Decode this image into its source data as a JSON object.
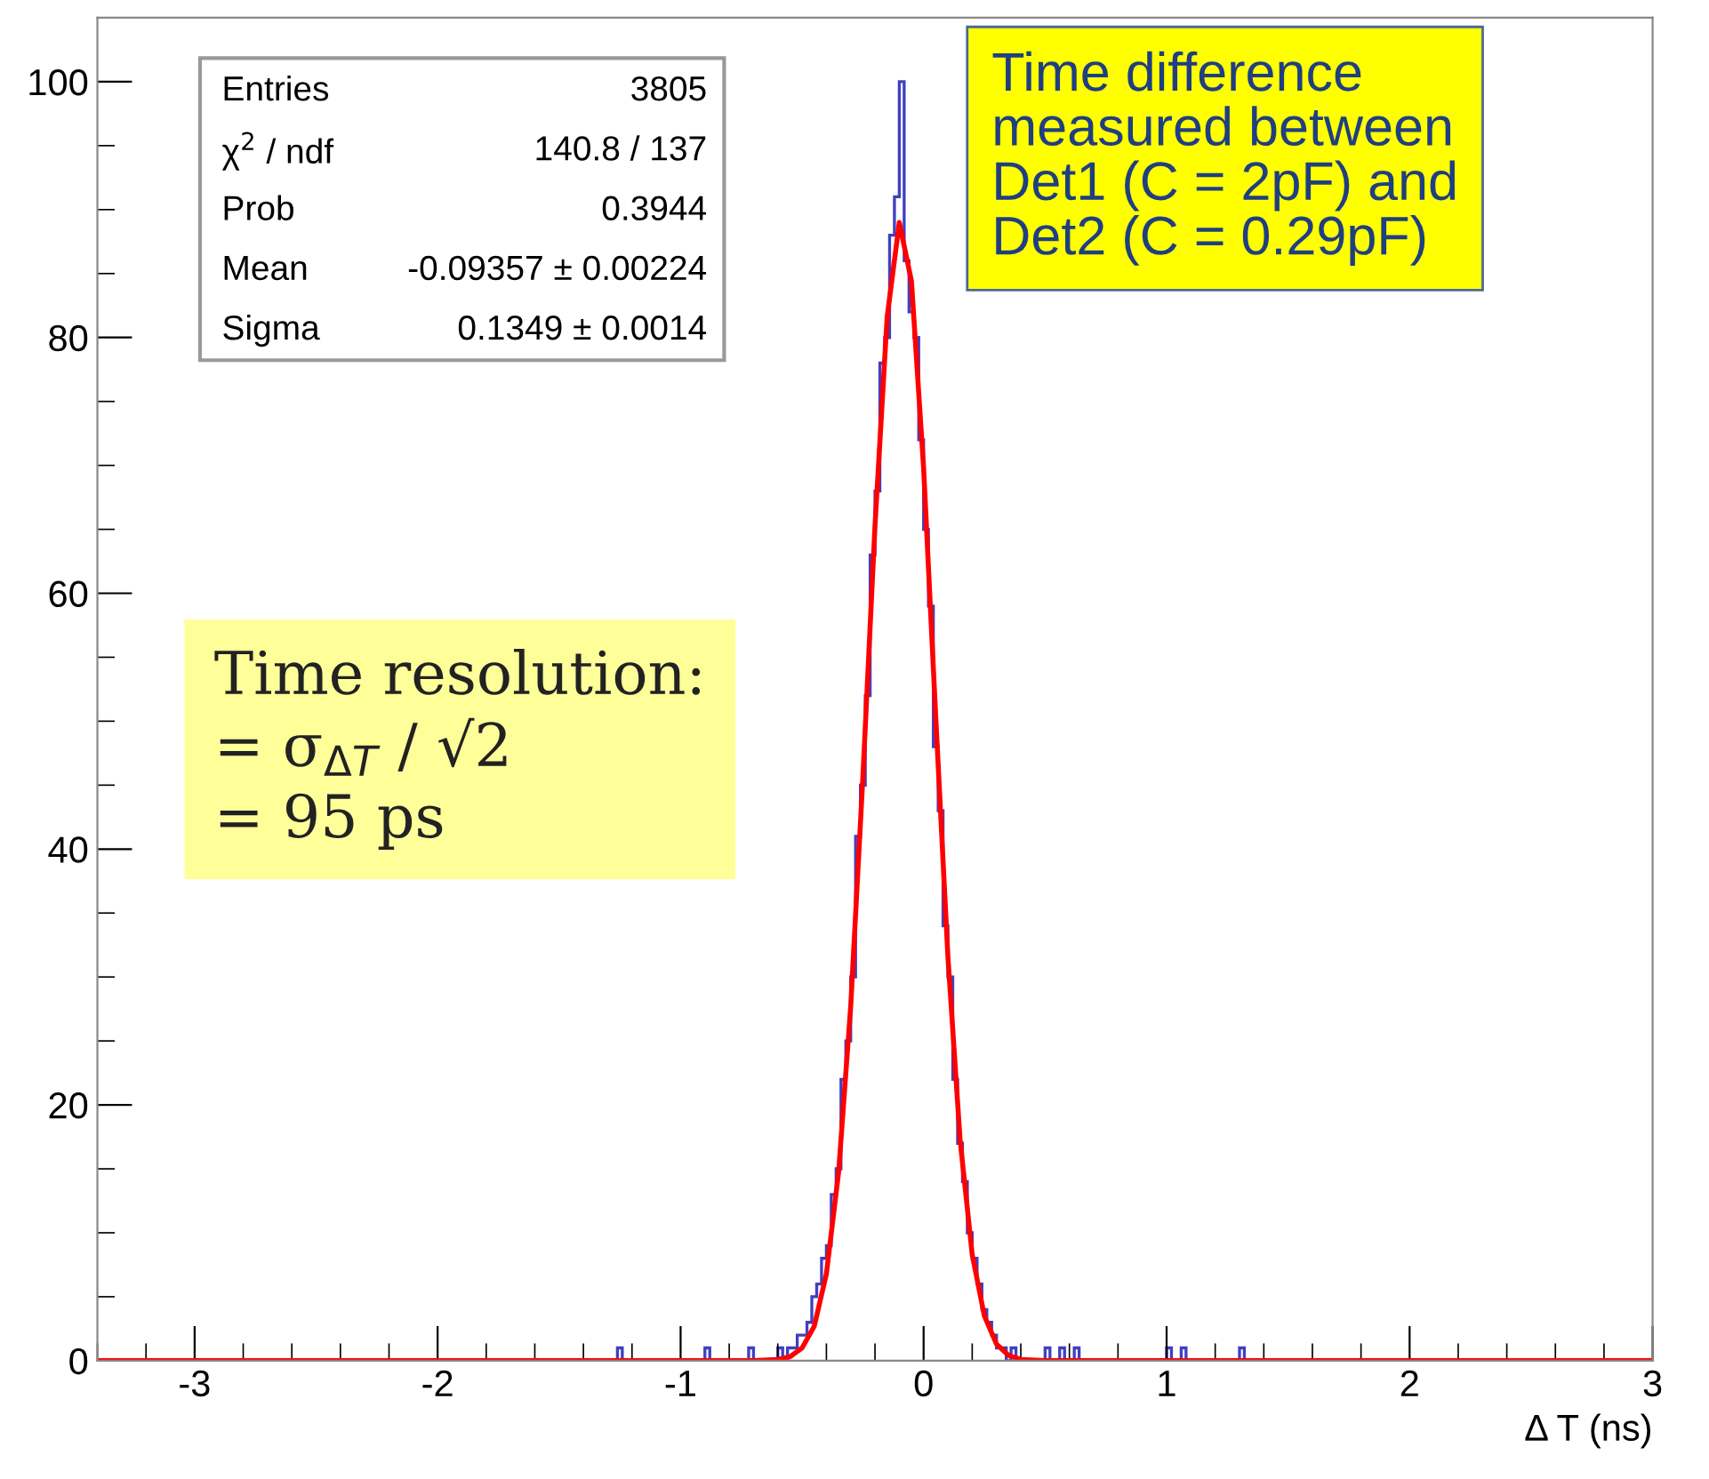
{
  "chart_data": {
    "type": "histogram",
    "xlabel": "Δ T (ns)",
    "bins": [
      -1.3,
      -1.28,
      -1.26,
      -1.24,
      -1.22,
      -1.2,
      -1.18,
      -1.16,
      -1.14,
      -1.12,
      -1.1,
      -1.08,
      -1.06,
      -1.04,
      -1.02,
      -1,
      -0.98,
      -0.96,
      -0.94,
      -0.92,
      -0.9,
      -0.88,
      -0.86,
      -0.84,
      -0.82,
      -0.8,
      -0.78,
      -0.76,
      -0.74,
      -0.72,
      -0.7,
      -0.68,
      -0.66,
      -0.64,
      -0.62,
      -0.6,
      -0.58,
      -0.56,
      -0.54,
      -0.52,
      -0.5,
      -0.48,
      -0.46,
      -0.44,
      -0.42,
      -0.4,
      -0.38,
      -0.36,
      -0.34,
      -0.32,
      -0.3,
      -0.28,
      -0.26,
      -0.24,
      -0.22,
      -0.2,
      -0.18,
      -0.16,
      -0.14,
      -0.12,
      -0.1,
      -0.08,
      -0.06,
      -0.04,
      -0.02,
      0,
      0.02,
      0.04,
      0.06,
      0.08,
      0.1,
      0.12,
      0.14,
      0.16,
      0.18,
      0.2,
      0.22,
      0.24,
      0.26,
      0.28,
      0.3,
      0.32,
      0.34,
      0.36,
      0.38,
      0.4,
      0.42,
      0.44,
      0.46,
      0.48,
      0.5,
      0.52,
      0.54,
      0.56,
      0.58,
      0.6,
      0.62,
      0.64,
      0.66,
      0.68,
      0.7,
      0.72,
      0.74,
      0.76,
      0.78,
      0.8,
      0.82,
      0.84,
      0.86,
      0.88,
      0.9,
      0.92,
      0.94,
      0.96,
      0.98,
      1,
      1.02,
      1.04,
      1.06,
      1.08,
      1.1,
      1.12,
      1.14,
      1.16,
      1.18,
      1.2,
      1.22,
      1.24,
      1.26,
      1.28,
      1.3,
      1.32,
      1.34
    ],
    "series": [
      {
        "color": "#4040c0",
        "values": [
          0,
          0,
          1,
          0,
          0,
          0,
          0,
          0,
          0,
          0,
          0,
          0,
          0,
          0,
          0,
          0,
          0,
          0,
          0,
          0,
          1,
          0,
          0,
          0,
          0,
          0,
          0,
          0,
          0,
          1,
          0,
          0,
          0,
          0,
          0,
          1,
          0,
          1,
          1,
          2,
          2,
          3,
          5,
          6,
          8,
          9,
          13,
          15,
          22,
          25,
          30,
          41,
          45,
          52,
          63,
          68,
          78,
          80,
          88,
          91,
          100,
          86,
          82,
          80,
          72,
          65,
          59,
          48,
          43,
          34,
          30,
          22,
          17,
          14,
          10,
          8,
          6,
          4,
          3,
          2,
          1,
          1,
          0,
          1,
          0,
          0,
          0,
          0,
          0,
          0,
          1,
          0,
          0,
          1,
          0,
          0,
          1,
          0,
          0,
          0,
          0,
          0,
          0,
          0,
          0,
          0,
          0,
          0,
          0,
          0,
          0,
          0,
          0,
          0,
          0,
          1,
          0,
          0,
          1,
          0,
          0,
          0,
          0,
          0,
          0,
          0,
          0,
          0,
          0,
          0,
          1,
          0
        ]
      },
      {
        "type": "line",
        "color": "#ff0000",
        "x": [
          -3.4,
          -0.7,
          -0.6,
          -0.55,
          -0.5,
          -0.45,
          -0.4,
          -0.35,
          -0.3,
          -0.25,
          -0.2,
          -0.15,
          -0.1,
          -0.05,
          0,
          0.05,
          0.1,
          0.15,
          0.2,
          0.25,
          0.3,
          0.35,
          0.4,
          0.5,
          3
        ],
        "values": [
          0,
          0,
          0.1,
          0.3,
          1,
          2.7,
          6.8,
          14.7,
          27.7,
          45.6,
          65.3,
          81.6,
          89,
          84.4,
          69.8,
          50.3,
          31.6,
          17.3,
          8.3,
          3.5,
          1.3,
          0.4,
          0.1,
          0,
          0
        ]
      }
    ],
    "xlim": [
      -3.4,
      3
    ],
    "xticks": [
      -3,
      -2,
      -1,
      0,
      1,
      2,
      3
    ],
    "ylim": [
      0,
      105
    ],
    "yticks": [
      0,
      20,
      40,
      60,
      80,
      100
    ],
    "grid": false,
    "annotations": [
      "Entries",
      "3805",
      "χ$^{2}$ / ndf",
      "140.8 / 137",
      "Prob",
      "0.3944",
      "Mean",
      "-0.09357 ± 0.00224",
      "Sigma",
      "0.1349 ± 0.0014",
      "Time difference\nmeasured between\nDet1 (C = 2pF) and\nDet2 (C = 0.29pF)",
      "Time resolution:\n= σ$_{ΔT}$ / √2\n= 95 ps"
    ]
  }
}
